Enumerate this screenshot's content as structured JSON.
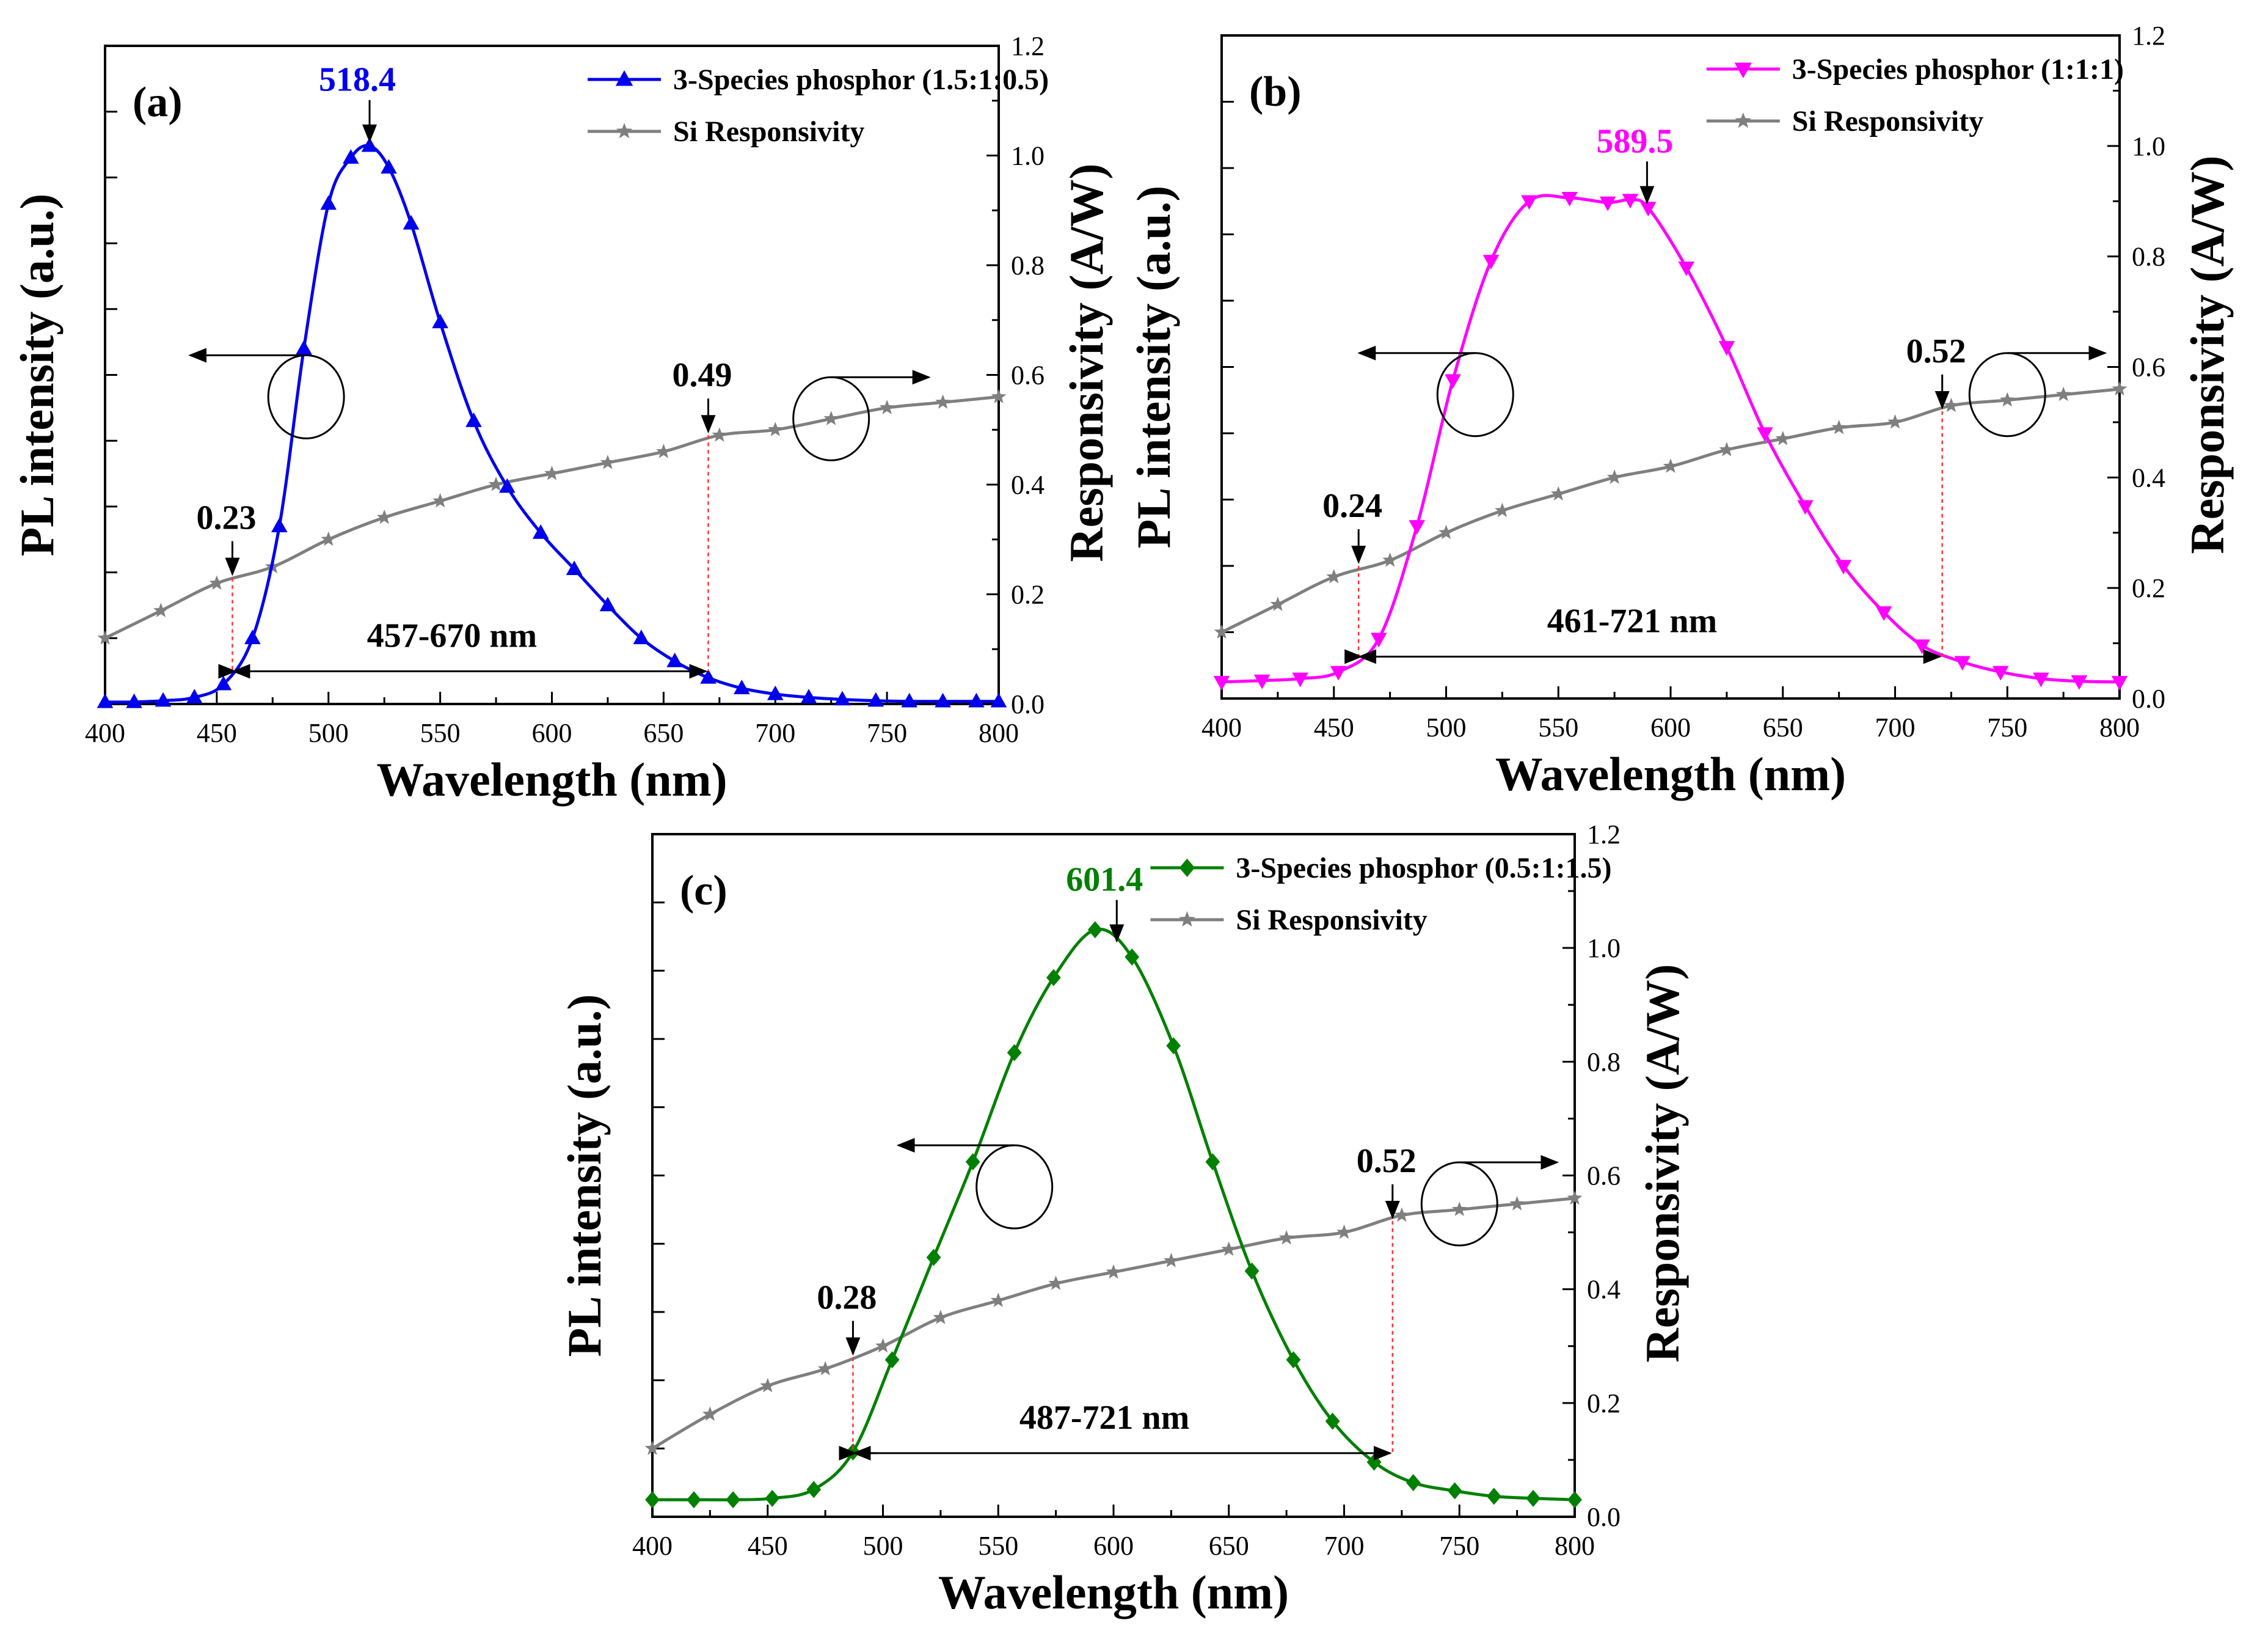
{
  "figure": {
    "colors": {
      "responsivity": "#7f7f7f",
      "guide_line": "#ff3333",
      "axis": "#000000"
    }
  },
  "chart_data": [
    {
      "id": "a",
      "type": "line",
      "panel_label": "(a)",
      "xlabel": "Wavelength (nm)",
      "ylabel_left": "PL intensity (a.u.)",
      "ylabel_right": "Responsivity (A/W)",
      "xlim": [
        400,
        800
      ],
      "xticks": [
        "400",
        "450",
        "500",
        "550",
        "600",
        "650",
        "700",
        "750",
        "800"
      ],
      "ylim_right": [
        0,
        1.2
      ],
      "yticks_right": [
        "0.0",
        "0.2",
        "0.4",
        "0.6",
        "0.8",
        "1.0",
        "1.2"
      ],
      "ylim_left": [
        0,
        1
      ],
      "legend_position": "top-right",
      "series": [
        {
          "name": "3-Species phosphor (1.5:1:0.5)",
          "color": "#0000ee",
          "marker": "triangle-up",
          "x": [
            400,
            413,
            426,
            440,
            453,
            466,
            478,
            489,
            500,
            510,
            518.4,
            527,
            537,
            550,
            565,
            580,
            595,
            610,
            625,
            640,
            655,
            670,
            685,
            700,
            715,
            730,
            745,
            760,
            775,
            790,
            800
          ],
          "values": [
            0.003,
            0.003,
            0.005,
            0.01,
            0.03,
            0.1,
            0.27,
            0.54,
            0.76,
            0.83,
            0.848,
            0.815,
            0.73,
            0.58,
            0.43,
            0.33,
            0.26,
            0.205,
            0.15,
            0.1,
            0.065,
            0.04,
            0.024,
            0.015,
            0.01,
            0.007,
            0.005,
            0.004,
            0.004,
            0.004,
            0.004
          ]
        },
        {
          "name": "Si Responsivity",
          "color": "#7f7f7f",
          "marker": "star",
          "x": [
            400,
            425,
            450,
            475,
            500,
            525,
            550,
            575,
            600,
            625,
            650,
            675,
            700,
            725,
            750,
            775,
            800
          ],
          "values": [
            0.12,
            0.17,
            0.22,
            0.25,
            0.3,
            0.34,
            0.37,
            0.4,
            0.42,
            0.44,
            0.46,
            0.49,
            0.5,
            0.52,
            0.54,
            0.55,
            0.56
          ]
        }
      ],
      "annotations": {
        "peak_label": "518.4",
        "peak_x": 518.4,
        "range_label": "457-670 nm",
        "range_start": 457,
        "range_end": 670,
        "low_label": "0.23",
        "low_x": 457,
        "low_value": 0.23,
        "high_label": "0.49",
        "high_x": 670,
        "high_value": 0.49
      }
    },
    {
      "id": "b",
      "type": "line",
      "panel_label": "(b)",
      "xlabel": "Wavelength (nm)",
      "ylabel_left": "PL intensity (a.u.)",
      "ylabel_right": "Responsivity (A/W)",
      "xlim": [
        400,
        800
      ],
      "xticks": [
        "400",
        "450",
        "500",
        "550",
        "600",
        "650",
        "700",
        "750",
        "800"
      ],
      "ylim_right": [
        0,
        1.2
      ],
      "yticks_right": [
        "0.0",
        "0.2",
        "0.4",
        "0.6",
        "0.8",
        "1.0",
        "1.2"
      ],
      "ylim_left": [
        0,
        1
      ],
      "legend_position": "top-right",
      "series": [
        {
          "name": "3-Species phosphor (1:1:1)",
          "color": "#ff00ff",
          "marker": "triangle-down",
          "x": [
            400,
            418,
            435,
            452,
            470,
            487,
            503,
            520,
            537,
            555,
            572,
            582,
            590,
            607,
            625,
            642,
            660,
            677,
            695,
            712,
            730,
            747,
            765,
            782,
            800
          ],
          "values": [
            0.025,
            0.027,
            0.03,
            0.04,
            0.09,
            0.26,
            0.48,
            0.66,
            0.75,
            0.755,
            0.748,
            0.752,
            0.74,
            0.65,
            0.53,
            0.4,
            0.29,
            0.2,
            0.13,
            0.08,
            0.055,
            0.04,
            0.03,
            0.026,
            0.025
          ]
        },
        {
          "name": "Si Responsivity",
          "color": "#7f7f7f",
          "marker": "star",
          "x": [
            400,
            425,
            450,
            475,
            500,
            525,
            550,
            575,
            600,
            625,
            650,
            675,
            700,
            725,
            750,
            775,
            800
          ],
          "values": [
            0.12,
            0.17,
            0.22,
            0.25,
            0.3,
            0.34,
            0.37,
            0.4,
            0.42,
            0.45,
            0.47,
            0.49,
            0.5,
            0.53,
            0.54,
            0.55,
            0.56
          ]
        }
      ],
      "annotations": {
        "peak_label": "589.5",
        "peak_x": 589.5,
        "range_label": "461-721 nm",
        "range_start": 461,
        "range_end": 721,
        "low_label": "0.24",
        "low_x": 461,
        "low_value": 0.24,
        "high_label": "0.52",
        "high_x": 721,
        "high_value": 0.52
      }
    },
    {
      "id": "c",
      "type": "line",
      "panel_label": "(c)",
      "xlabel": "Wavelength (nm)",
      "ylabel_left": "PL intensity (a.u.)",
      "ylabel_right": "Responsivity (A/W)",
      "xlim": [
        400,
        800
      ],
      "xticks": [
        "400",
        "450",
        "500",
        "550",
        "600",
        "650",
        "700",
        "750",
        "800"
      ],
      "ylim_right": [
        0,
        1.2
      ],
      "yticks_right": [
        "0.0",
        "0.2",
        "0.4",
        "0.6",
        "0.8",
        "1.0",
        "1.2"
      ],
      "ylim_left": [
        0,
        1
      ],
      "legend_position": "top-right",
      "series": [
        {
          "name": "3-Species phosphor (0.5:1:1.5)",
          "color": "#008000",
          "marker": "diamond",
          "x": [
            400,
            418,
            435,
            452,
            470,
            487,
            504,
            522,
            539,
            557,
            574,
            592,
            608,
            626,
            643,
            660,
            678,
            695,
            713,
            730,
            748,
            765,
            782,
            800
          ],
          "values": [
            0.025,
            0.025,
            0.025,
            0.027,
            0.04,
            0.095,
            0.23,
            0.38,
            0.52,
            0.68,
            0.79,
            0.86,
            0.82,
            0.69,
            0.52,
            0.36,
            0.23,
            0.14,
            0.08,
            0.05,
            0.038,
            0.03,
            0.027,
            0.025
          ]
        },
        {
          "name": "Si Responsivity",
          "color": "#7f7f7f",
          "marker": "star",
          "x": [
            400,
            425,
            450,
            475,
            500,
            525,
            550,
            575,
            600,
            625,
            650,
            675,
            700,
            725,
            750,
            775,
            800
          ],
          "values": [
            0.12,
            0.18,
            0.23,
            0.26,
            0.3,
            0.35,
            0.38,
            0.41,
            0.43,
            0.45,
            0.47,
            0.49,
            0.5,
            0.53,
            0.54,
            0.55,
            0.56
          ]
        }
      ],
      "annotations": {
        "peak_label": "601.4",
        "peak_x": 601.4,
        "range_label": "487-721 nm",
        "range_start": 487,
        "range_end": 721,
        "low_label": "0.28",
        "low_x": 487,
        "low_value": 0.28,
        "high_label": "0.52",
        "high_x": 721,
        "high_value": 0.52
      }
    }
  ]
}
